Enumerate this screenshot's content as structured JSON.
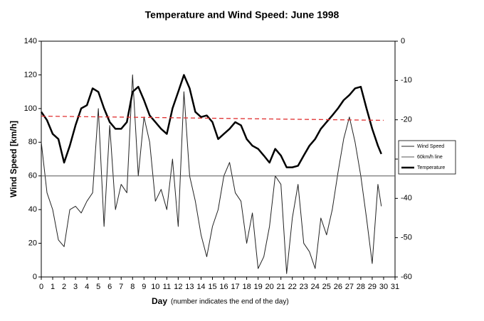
{
  "chart_data": {
    "type": "line",
    "title": "Temperature and Wind Speed: June 1998",
    "xlabel": "Day",
    "xlabel_note": "(number indicates the end of the day)",
    "ylabel": "Wind Speed [km/h]",
    "x": [
      0,
      0.5,
      1,
      1.5,
      2,
      2.5,
      3,
      3.5,
      4,
      4.5,
      5,
      5.5,
      6,
      6.5,
      7,
      7.5,
      8,
      8.5,
      9,
      9.5,
      10,
      10.5,
      11,
      11.5,
      12,
      12.5,
      13,
      13.5,
      14,
      14.5,
      15,
      15.5,
      16,
      16.5,
      17,
      17.5,
      18,
      18.5,
      19,
      19.5,
      20,
      20.5,
      21,
      21.5,
      22,
      22.5,
      23,
      23.5,
      24,
      24.5,
      25,
      25.5,
      26,
      26.5,
      27,
      27.5,
      28,
      28.5,
      29,
      29.5,
      29.8
    ],
    "series": [
      {
        "name": "Wind Speed",
        "color": "#222222",
        "width": 1,
        "axis": "y",
        "values": [
          80,
          50,
          40,
          22,
          18,
          40,
          42,
          38,
          45,
          50,
          100,
          30,
          90,
          40,
          55,
          50,
          120,
          60,
          95,
          80,
          45,
          52,
          40,
          70,
          30,
          110,
          60,
          45,
          25,
          12,
          30,
          40,
          60,
          68,
          50,
          45,
          20,
          38,
          5,
          12,
          30,
          60,
          55,
          2,
          35,
          55,
          20,
          15,
          5,
          35,
          25,
          40,
          62,
          82,
          95,
          80,
          60,
          35,
          8,
          55,
          42
        ]
      },
      {
        "name": "60km/h line",
        "color": "#555555",
        "width": 1,
        "axis": "y",
        "x": [
          0,
          31
        ],
        "values": [
          60,
          60
        ]
      },
      {
        "name": "Temperature",
        "color": "#000000",
        "width": 2.5,
        "axis": "y2",
        "values": [
          -18,
          -20.1,
          -23.6,
          -24.9,
          -30.9,
          -26.6,
          -21.4,
          -17.1,
          -16.3,
          -12,
          -12.9,
          -17.1,
          -20.6,
          -22.3,
          -22.3,
          -20.6,
          -12.9,
          -11.6,
          -15,
          -18.9,
          -20.6,
          -22.3,
          -23.6,
          -17.1,
          -12.9,
          -8.6,
          -12,
          -18,
          -19.3,
          -18.9,
          -20.6,
          -24.9,
          -23.6,
          -22.3,
          -20.6,
          -21.4,
          -24.9,
          -26.6,
          -27.4,
          -29.1,
          -30.9,
          -27.4,
          -29.1,
          -32.1,
          -32.1,
          -31.7,
          -29.1,
          -26.6,
          -24.9,
          -22.3,
          -20.6,
          -18.9,
          -17.1,
          -15,
          -13.7,
          -12,
          -11.6,
          -17.1,
          -22.3,
          -26.6,
          -28.7
        ]
      },
      {
        "color": "#e03030",
        "width": 1.3,
        "dash": true,
        "axis": "y",
        "x": [
          0,
          30
        ],
        "values": [
          95.5,
          93
        ]
      }
    ],
    "xlim": [
      0,
      31
    ],
    "xticks": [
      0,
      1,
      2,
      3,
      4,
      5,
      6,
      7,
      8,
      9,
      10,
      11,
      12,
      13,
      14,
      15,
      16,
      17,
      18,
      19,
      20,
      21,
      22,
      23,
      24,
      25,
      26,
      27,
      28,
      29,
      30,
      31
    ],
    "ylim": [
      0,
      140
    ],
    "yticks": [
      0,
      20,
      40,
      60,
      80,
      100,
      120,
      140
    ],
    "y2lim": [
      -60,
      0
    ],
    "y2ticks": [
      -60,
      -50,
      -40,
      -30,
      -20,
      -10,
      0
    ],
    "grid": false,
    "legend": "right"
  }
}
